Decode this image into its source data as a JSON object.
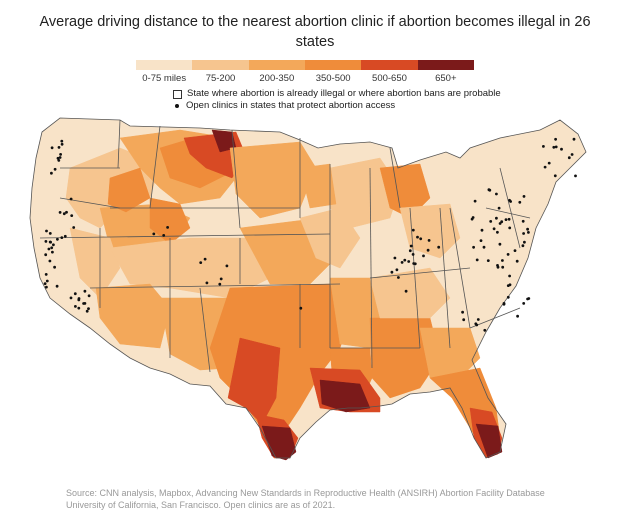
{
  "title": "Average driving distance to the nearest abortion clinic if abortion becomes illegal in 26 states",
  "legend": {
    "items": [
      {
        "label": "0-75 miles",
        "color": "#f8e3c8"
      },
      {
        "label": "75-200",
        "color": "#f6c58f"
      },
      {
        "label": "200-350",
        "color": "#f3a85a"
      },
      {
        "label": "350-500",
        "color": "#ef8c3a"
      },
      {
        "label": "500-650",
        "color": "#d84a24"
      },
      {
        "label": "650+",
        "color": "#7b1a1a"
      }
    ]
  },
  "notes": {
    "states": "State where abortion is already illegal or where abortion bans are probable",
    "clinics": "Open clinics in states that protect abortion access"
  },
  "source": {
    "line1": "Source: CNN analysis, Mapbox, Advancing New Standards in Reproductive Health (ANSIRH) Abortion Facility Database",
    "line2": "University of California, San Francisco. Open clinics are as of 2021."
  },
  "colors": {
    "border": "#555555",
    "clinic": "#111111"
  }
}
